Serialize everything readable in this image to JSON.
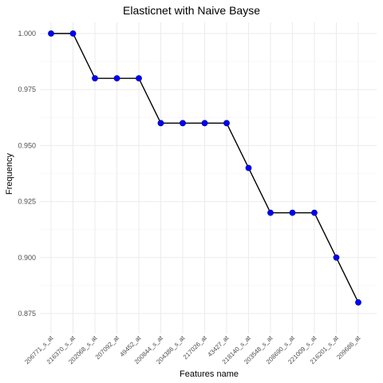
{
  "chart_data": {
    "type": "line",
    "title": "Elasticnet with Naive Bayse",
    "xlabel": "Features name",
    "ylabel": "Frequency",
    "categories": [
      "206771_s_at",
      "216370_s_at",
      "202068_s_at",
      "207092_at",
      "49452_at",
      "200844_s_at",
      "204386_s_at",
      "217026_at",
      "43427_at",
      "218140_s_at",
      "203548_s_at",
      "208690_s_at",
      "221009_s_at",
      "216201_s_at",
      "209686_at"
    ],
    "values": [
      1.0,
      1.0,
      0.98,
      0.98,
      0.98,
      0.96,
      0.96,
      0.96,
      0.96,
      0.94,
      0.92,
      0.92,
      0.92,
      0.9,
      0.88
    ],
    "ylim": [
      0.875,
      1.0
    ],
    "yticks": [
      0.875,
      0.9,
      0.925,
      0.95,
      0.975,
      1.0
    ],
    "ytick_labels": [
      "0.875",
      "0.900",
      "0.925",
      "0.950",
      "0.975",
      "1.000"
    ],
    "grid": true,
    "colors": {
      "line": "#000000",
      "point": "#0000ff",
      "grid": "#ebebeb"
    }
  }
}
